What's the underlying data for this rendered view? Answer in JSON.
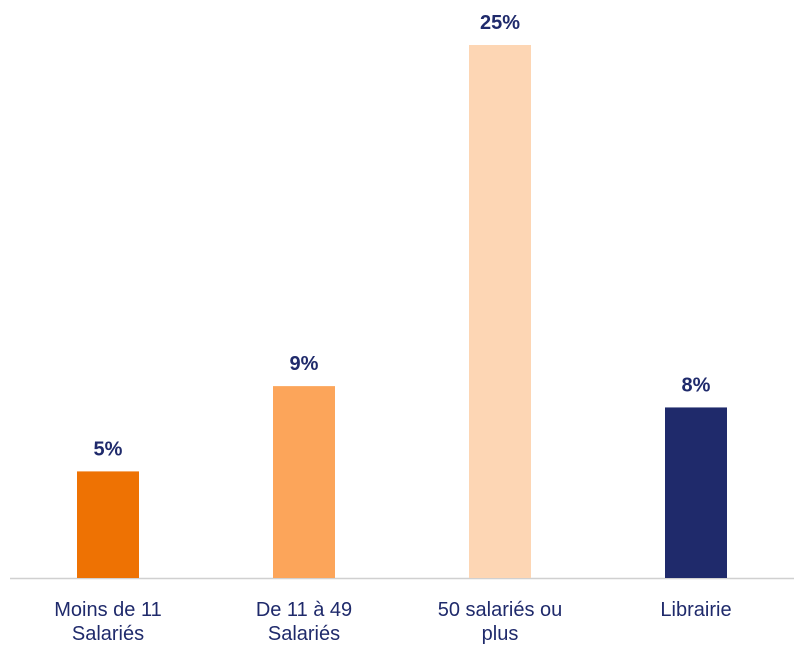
{
  "chart_data": {
    "type": "bar",
    "categories": [
      "Moins de 11 Salariés",
      "De 11 à 49 Salariés",
      "50 salariés ou plus",
      "Librairie"
    ],
    "values": [
      5,
      9,
      25,
      8
    ],
    "value_labels": [
      "5%",
      "9%",
      "25%",
      "8%"
    ],
    "colors": [
      "#ee7203",
      "#fca55a",
      "#fdd6b4",
      "#1f2a6b"
    ]
  }
}
